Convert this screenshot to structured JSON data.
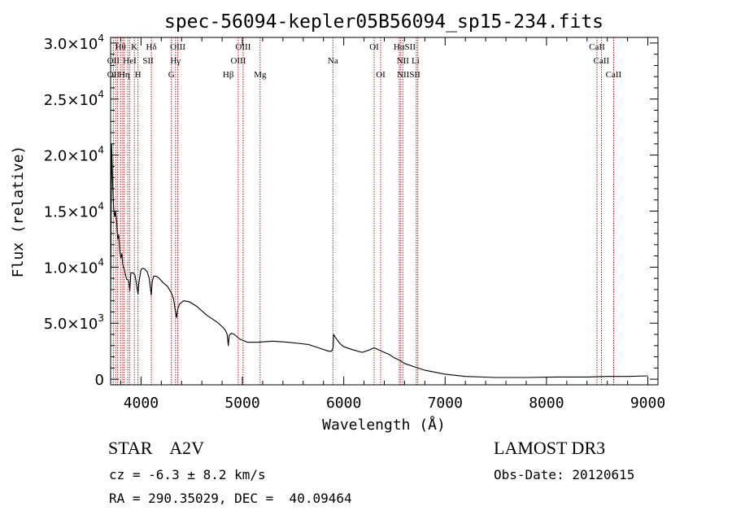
{
  "chart_data": {
    "type": "line",
    "title": "spec-56094-kepler05B56094_sp15-234.fits",
    "xlabel": "Wavelength (Å)",
    "ylabel": "Flux (relative)",
    "xlim": [
      3700,
      9100
    ],
    "ylim": [
      -500,
      30500
    ],
    "xticks": [
      4000,
      5000,
      6000,
      7000,
      8000,
      9000
    ],
    "xtick_labels": [
      "4000",
      "5000",
      "6000",
      "7000",
      "8000",
      "9000"
    ],
    "yticks": [
      {
        "value": 0,
        "mantissa": "0",
        "exponent": ""
      },
      {
        "value": 5000,
        "mantissa": "5.0×10",
        "exponent": "3"
      },
      {
        "value": 10000,
        "mantissa": "1.0×10",
        "exponent": "4"
      },
      {
        "value": 15000,
        "mantissa": "1.5×10",
        "exponent": "4"
      },
      {
        "value": 20000,
        "mantissa": "2.0×10",
        "exponent": "4"
      },
      {
        "value": 25000,
        "mantissa": "2.5×10",
        "exponent": "4"
      },
      {
        "value": 30000,
        "mantissa": "3.0×10",
        "exponent": "4"
      }
    ],
    "series": [
      {
        "name": "spectrum",
        "color": "#000000",
        "x": [
          3700,
          3710,
          3720,
          3730,
          3740,
          3750,
          3760,
          3770,
          3780,
          3790,
          3800,
          3810,
          3820,
          3835,
          3850,
          3860,
          3870,
          3880,
          3889,
          3900,
          3920,
          3940,
          3955,
          3970,
          3980,
          4000,
          4020,
          4040,
          4060,
          4080,
          4090,
          4101,
          4110,
          4125,
          4150,
          4180,
          4220,
          4260,
          4300,
          4320,
          4340,
          4350,
          4360,
          4380,
          4420,
          4480,
          4550,
          4650,
          4750,
          4800,
          4830,
          4850,
          4861,
          4870,
          4890,
          4920,
          4970,
          5050,
          5150,
          5300,
          5450,
          5550,
          5650,
          5750,
          5850,
          5880,
          5895,
          5900,
          5920,
          5960,
          6000,
          6100,
          6180,
          6250,
          6300,
          6350,
          6400,
          6450,
          6500,
          6550,
          6600,
          6700,
          6800,
          7000,
          7200,
          7500,
          7800,
          8100,
          8400,
          8600,
          8800,
          9000
        ],
        "y": [
          7000,
          21000,
          17500,
          15300,
          14500,
          15000,
          14000,
          12500,
          12900,
          11500,
          10800,
          11200,
          10200,
          9800,
          9200,
          8900,
          8900,
          8700,
          7900,
          9500,
          9500,
          9300,
          8500,
          7600,
          8700,
          9800,
          9900,
          9800,
          9600,
          9000,
          8300,
          7500,
          8700,
          9200,
          9200,
          9000,
          8600,
          8300,
          7700,
          7200,
          6000,
          5500,
          6200,
          6700,
          7000,
          6900,
          6500,
          5700,
          5100,
          4700,
          4400,
          4000,
          3000,
          3900,
          4100,
          4000,
          3600,
          3300,
          3300,
          3400,
          3300,
          3200,
          3100,
          2800,
          2500,
          2500,
          2800,
          4000,
          3700,
          3200,
          2900,
          2600,
          2400,
          2600,
          2800,
          2600,
          2400,
          2200,
          1900,
          1700,
          1400,
          1100,
          800,
          450,
          250,
          150,
          150,
          200,
          200,
          250,
          250,
          300
        ]
      }
    ],
    "line_groups": [
      {
        "row": 1,
        "x": [
          3750,
          3820,
          3870,
          3890,
          3934,
          3970,
          4102,
          4300,
          4340,
          4363,
          4959,
          5007,
          5175,
          5893,
          6300,
          6364,
          6548,
          6563,
          6583,
          6716,
          6731,
          8498,
          8542,
          8662
        ]
      },
      {
        "row": 1,
        "x": [
          3727,
          3770,
          3798,
          3835
        ]
      }
    ],
    "line_labels": [
      {
        "text": "Hθ",
        "x": 3798,
        "row": 1
      },
      {
        "text": "K",
        "x": 3934,
        "row": 1
      },
      {
        "text": "Hδ",
        "x": 4102,
        "row": 1
      },
      {
        "text": "OIII",
        "x": 4363,
        "row": 1
      },
      {
        "text": "OIII",
        "x": 5007,
        "row": 1
      },
      {
        "text": "OI",
        "x": 6300,
        "row": 1
      },
      {
        "text": "HαSII",
        "x": 6600,
        "row": 1
      },
      {
        "text": "CaII",
        "x": 8498,
        "row": 1
      },
      {
        "text": "OII",
        "x": 3727,
        "row": 2
      },
      {
        "text": "HeI",
        "x": 3889,
        "row": 2
      },
      {
        "text": "SII",
        "x": 4070,
        "row": 2
      },
      {
        "text": "Hγ",
        "x": 4340,
        "row": 2
      },
      {
        "text": "OIII",
        "x": 4959,
        "row": 2
      },
      {
        "text": "Na",
        "x": 5893,
        "row": 2
      },
      {
        "text": "NII",
        "x": 6583,
        "row": 2
      },
      {
        "text": "Li",
        "x": 6708,
        "row": 2
      },
      {
        "text": "CaII",
        "x": 8542,
        "row": 2
      },
      {
        "text": "OII",
        "x": 3727,
        "row": 3
      },
      {
        "text": "Hη",
        "x": 3835,
        "row": 3
      },
      {
        "text": "H",
        "x": 3970,
        "row": 3
      },
      {
        "text": "G",
        "x": 4300,
        "row": 3
      },
      {
        "text": "Hβ",
        "x": 4861,
        "row": 3
      },
      {
        "text": "Mg",
        "x": 5175,
        "row": 3
      },
      {
        "text": "OI",
        "x": 6364,
        "row": 3
      },
      {
        "text": "NIISII",
        "x": 6640,
        "row": 3
      },
      {
        "text": "CaII",
        "x": 8662,
        "row": 3
      }
    ],
    "grid": false,
    "legend": "none"
  },
  "info": {
    "object_class": "STAR",
    "subclass": "A2V",
    "cz": "cz = -6.3 ± 8.2 km/s",
    "radec": "RA = 290.35029, DEC =  40.09464",
    "survey": "LAMOST DR3",
    "obs_date": "Obs-Date: 20120615"
  },
  "colors": {
    "spectrum": "#000000",
    "line_marker": "#b00000",
    "axis": "#000000"
  }
}
